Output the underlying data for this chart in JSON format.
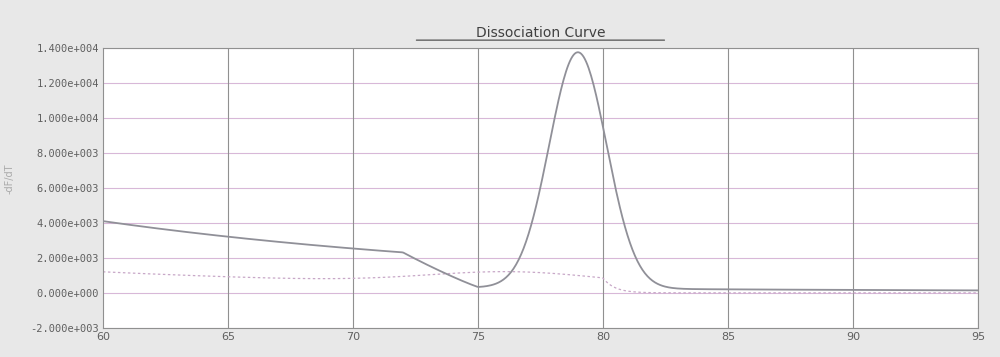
{
  "title": "Dissociation Curve",
  "xlim": [
    60,
    95
  ],
  "ylim": [
    -2000,
    14000
  ],
  "xticks": [
    60,
    65,
    70,
    75,
    80,
    85,
    90,
    95
  ],
  "yticks": [
    -2000,
    0,
    2000,
    4000,
    6000,
    8000,
    10000,
    12000,
    14000
  ],
  "ytick_labels": [
    "-2.000e+003",
    "0.000e+000",
    "2.000e+003",
    "4.000e+003",
    "6.000e+003",
    "8.000e+003",
    "1.000e+004",
    "1.200e+004",
    "1.400e+004"
  ],
  "bg_color": "#e8e8e8",
  "plot_bg_color": "#ffffff",
  "grid_h_color": "#d8b8d8",
  "grid_v_color": "#909090",
  "curve1_color": "#909098",
  "curve2_color": "#c8a8c8",
  "title_color": "#404040",
  "axis_color": "#606060",
  "spine_color": "#909090"
}
